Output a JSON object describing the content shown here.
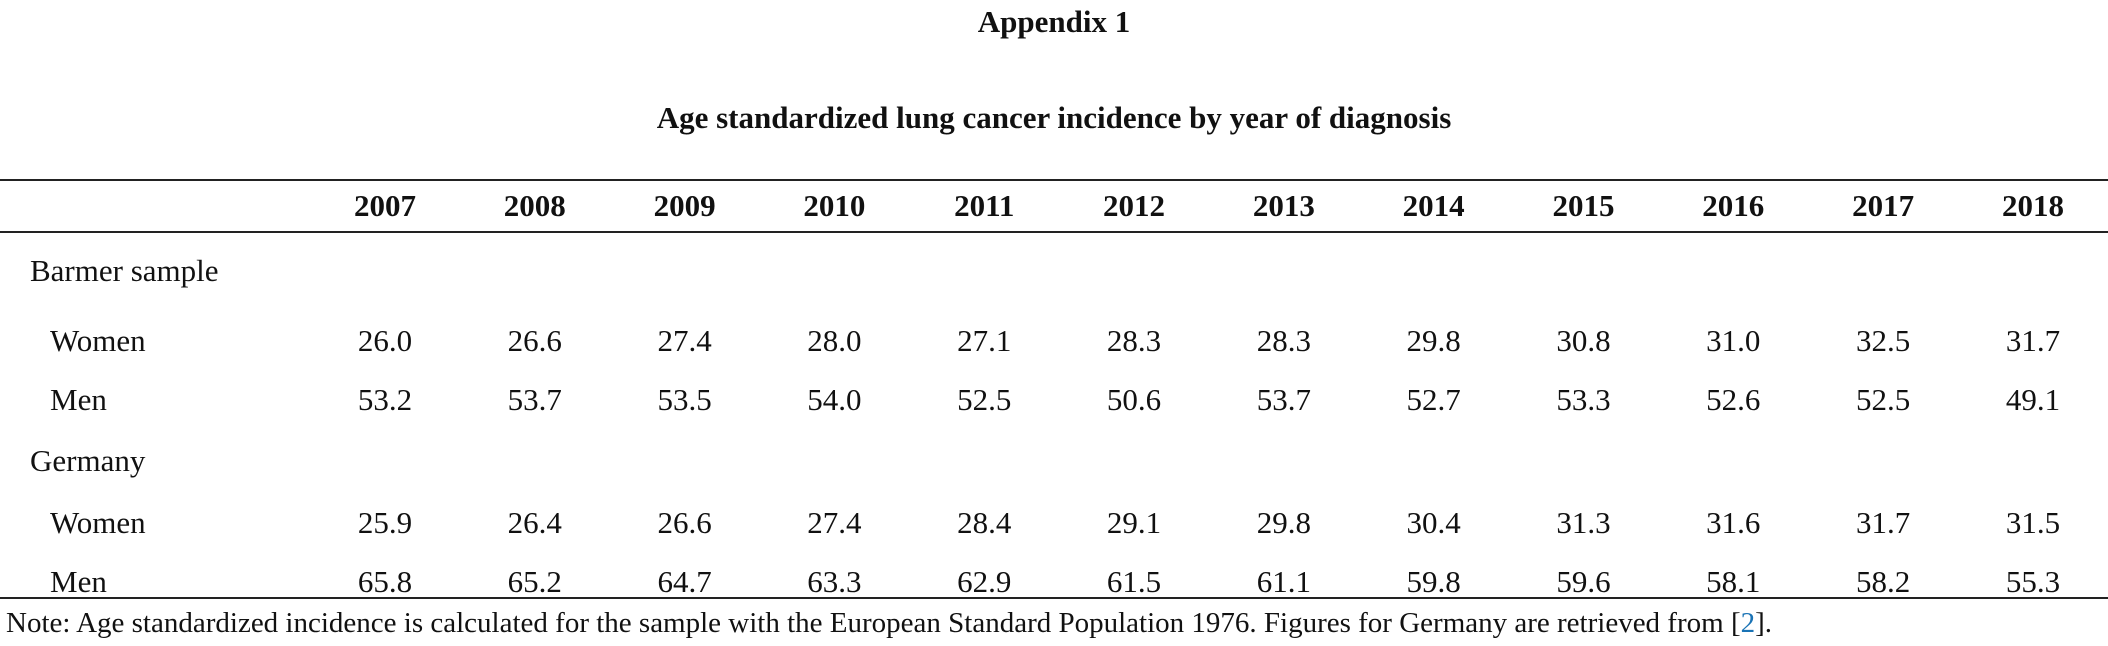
{
  "appendix_title": "Appendix 1",
  "table_title": "Age standardized lung cancer incidence by year of diagnosis",
  "years": [
    "2007",
    "2008",
    "2009",
    "2010",
    "2011",
    "2012",
    "2013",
    "2014",
    "2015",
    "2016",
    "2017",
    "2018"
  ],
  "groups": [
    {
      "label": "Barmer sample",
      "rows": [
        {
          "label": "Women",
          "values": [
            "26.0",
            "26.6",
            "27.4",
            "28.0",
            "27.1",
            "28.3",
            "28.3",
            "29.8",
            "30.8",
            "31.0",
            "32.5",
            "31.7"
          ]
        },
        {
          "label": "Men",
          "values": [
            "53.2",
            "53.7",
            "53.5",
            "54.0",
            "52.5",
            "50.6",
            "53.7",
            "52.7",
            "53.3",
            "52.6",
            "52.5",
            "49.1"
          ]
        }
      ]
    },
    {
      "label": "Germany",
      "rows": [
        {
          "label": "Women",
          "values": [
            "25.9",
            "26.4",
            "26.6",
            "27.4",
            "28.4",
            "29.1",
            "29.8",
            "30.4",
            "31.3",
            "31.6",
            "31.7",
            "31.5"
          ]
        },
        {
          "label": "Men",
          "values": [
            "65.8",
            "65.2",
            "64.7",
            "63.3",
            "62.9",
            "61.5",
            "61.1",
            "59.8",
            "59.6",
            "58.1",
            "58.2",
            "55.3"
          ]
        }
      ]
    }
  ],
  "note": {
    "text": "Note: Age standardized incidence is calculated for the sample with the European Standard Population 1976. Figures for Germany are retrieved from ",
    "ref_open": "[",
    "ref": "2",
    "ref_close": "].",
    "ref_color": "#1a73b5"
  }
}
